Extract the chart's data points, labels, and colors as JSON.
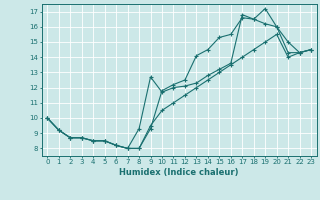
{
  "xlabel": "Humidex (Indice chaleur)",
  "background_color": "#cce8e8",
  "grid_color": "#ffffff",
  "line_color": "#1a7070",
  "xlim": [
    -0.5,
    23.5
  ],
  "ylim": [
    7.5,
    17.5
  ],
  "xticks": [
    0,
    1,
    2,
    3,
    4,
    5,
    6,
    7,
    8,
    9,
    10,
    11,
    12,
    13,
    14,
    15,
    16,
    17,
    18,
    19,
    20,
    21,
    22,
    23
  ],
  "yticks": [
    8,
    9,
    10,
    11,
    12,
    13,
    14,
    15,
    16,
    17
  ],
  "hours": [
    0,
    1,
    2,
    3,
    4,
    5,
    6,
    7,
    8,
    9,
    10,
    11,
    12,
    13,
    14,
    15,
    16,
    17,
    18,
    19,
    20,
    21,
    22,
    23
  ],
  "line_top": [
    10.0,
    9.2,
    8.7,
    8.7,
    8.5,
    8.5,
    8.2,
    8.0,
    8.0,
    9.3,
    11.8,
    12.2,
    12.5,
    14.1,
    14.5,
    15.3,
    15.5,
    16.6,
    16.5,
    17.2,
    16.0,
    15.0,
    14.3,
    14.5
  ],
  "line_mid": [
    10.0,
    9.2,
    8.7,
    8.7,
    8.5,
    8.5,
    8.2,
    8.0,
    9.3,
    12.7,
    11.7,
    12.0,
    12.1,
    12.3,
    12.8,
    13.2,
    13.6,
    16.8,
    16.5,
    16.2,
    16.0,
    14.3,
    14.3,
    14.5
  ],
  "line_bot": [
    10.0,
    9.2,
    8.7,
    8.7,
    8.5,
    8.5,
    8.2,
    8.0,
    8.0,
    9.5,
    10.5,
    11.0,
    11.5,
    12.0,
    12.5,
    13.0,
    13.5,
    14.0,
    14.5,
    15.0,
    15.5,
    14.0,
    14.3,
    14.5
  ]
}
